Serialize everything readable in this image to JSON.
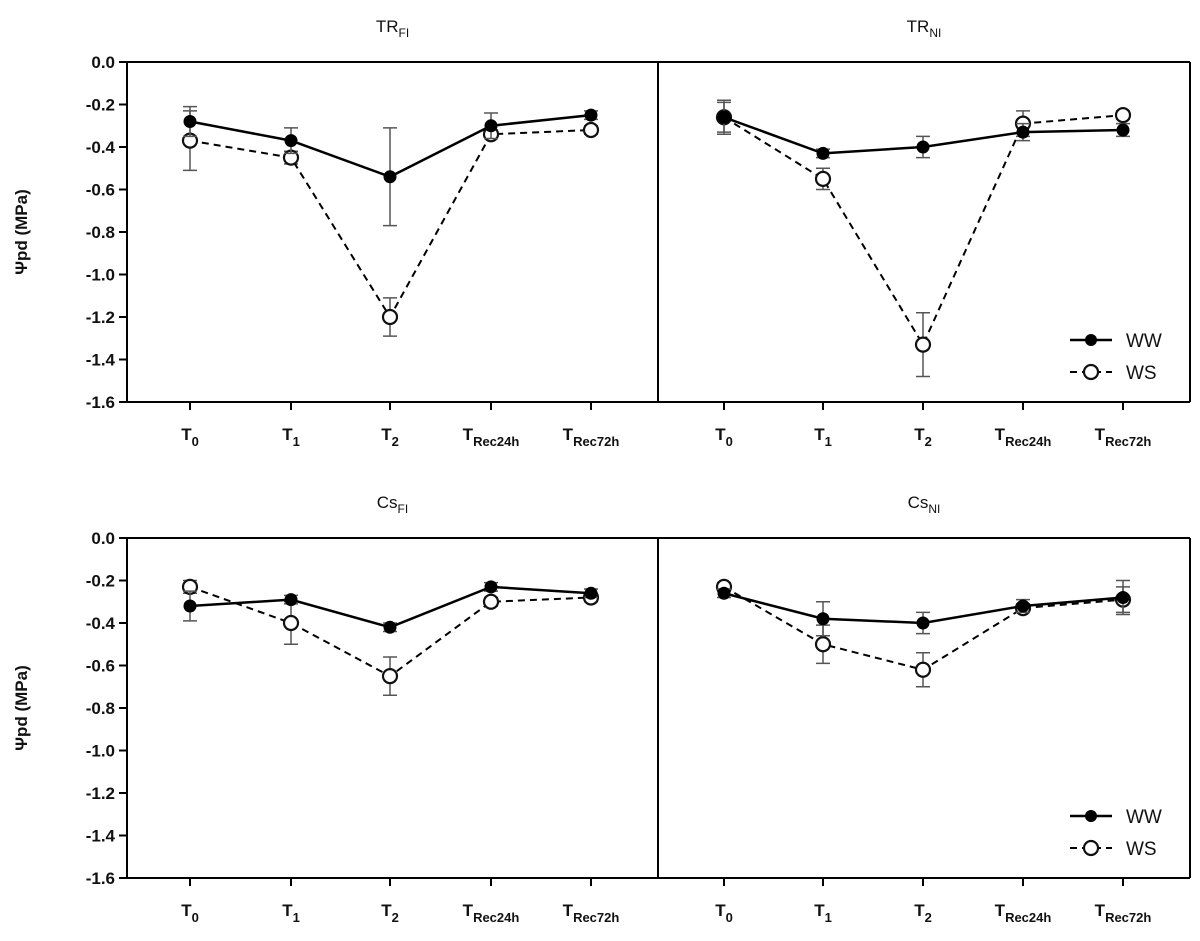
{
  "figure": {
    "ylabel": "Ψpd (MPa)"
  },
  "chart_data": [
    {
      "type": "line",
      "title": "TR",
      "title_sub": "FI",
      "categories": [
        "T0",
        "T1",
        "T2",
        "TRec24h",
        "TRec72h"
      ],
      "ylim": [
        -1.6,
        0.0
      ],
      "yticks": [
        "0.0",
        "-0.2",
        "-0.4",
        "-0.6",
        "-0.8",
        "-1.0",
        "-1.2",
        "-1.4",
        "-1.6"
      ],
      "series": [
        {
          "name": "WW",
          "values": [
            -0.28,
            -0.37,
            -0.54,
            -0.3,
            -0.25
          ],
          "errors": [
            0.07,
            0.06,
            0.23,
            0.06,
            0.02
          ],
          "marker": "filled",
          "line": "solid"
        },
        {
          "name": "WS",
          "values": [
            -0.37,
            -0.45,
            -1.2,
            -0.34,
            -0.32
          ],
          "errors": [
            0.14,
            0.03,
            0.09,
            0.02,
            0.02
          ],
          "marker": "open",
          "line": "dashed"
        }
      ],
      "legend": false
    },
    {
      "type": "line",
      "title": "TR",
      "title_sub": "NI",
      "categories": [
        "T0",
        "T1",
        "T2",
        "TRec24h",
        "TRec72h"
      ],
      "ylim": [
        -1.6,
        0.0
      ],
      "series": [
        {
          "name": "WW",
          "values": [
            -0.26,
            -0.43,
            -0.4,
            -0.33,
            -0.32
          ],
          "errors": [
            0.07,
            0.02,
            0.05,
            0.04,
            0.03
          ],
          "marker": "filled",
          "line": "solid"
        },
        {
          "name": "WS",
          "values": [
            -0.26,
            -0.55,
            -1.33,
            -0.29,
            -0.25
          ],
          "errors": [
            0.08,
            0.05,
            0.15,
            0.06,
            0.02
          ],
          "marker": "open",
          "line": "dashed"
        }
      ],
      "legend": true,
      "legend_position": "bottom-right"
    },
    {
      "type": "line",
      "title": "Cs",
      "title_sub": "FI",
      "categories": [
        "T0",
        "T1",
        "T2",
        "TRec24h",
        "TRec72h"
      ],
      "ylim": [
        -1.6,
        0.0
      ],
      "yticks": [
        "0.0",
        "-0.2",
        "-0.4",
        "-0.6",
        "-0.8",
        "-1.0",
        "-1.2",
        "-1.4",
        "-1.6"
      ],
      "series": [
        {
          "name": "WW",
          "values": [
            -0.32,
            -0.29,
            -0.42,
            -0.23,
            -0.26
          ],
          "errors": [
            0.07,
            0.02,
            0.02,
            0.02,
            0.02
          ],
          "marker": "filled",
          "line": "solid"
        },
        {
          "name": "WS",
          "values": [
            -0.23,
            -0.4,
            -0.65,
            -0.3,
            -0.28
          ],
          "errors": [
            0.03,
            0.1,
            0.09,
            0.02,
            0.02
          ],
          "marker": "open",
          "line": "dashed"
        }
      ],
      "legend": false
    },
    {
      "type": "line",
      "title": "Cs",
      "title_sub": "NI",
      "categories": [
        "T0",
        "T1",
        "T2",
        "TRec24h",
        "TRec72h"
      ],
      "ylim": [
        -1.6,
        0.0
      ],
      "series": [
        {
          "name": "WW",
          "values": [
            -0.26,
            -0.38,
            -0.4,
            -0.32,
            -0.28
          ],
          "errors": [
            0.02,
            0.08,
            0.05,
            0.03,
            0.08
          ],
          "marker": "filled",
          "line": "solid"
        },
        {
          "name": "WS",
          "values": [
            -0.23,
            -0.5,
            -0.62,
            -0.33,
            -0.29
          ],
          "errors": [
            0.02,
            0.09,
            0.08,
            0.02,
            0.06
          ],
          "marker": "open",
          "line": "dashed"
        }
      ],
      "legend": true,
      "legend_position": "bottom-right"
    }
  ]
}
